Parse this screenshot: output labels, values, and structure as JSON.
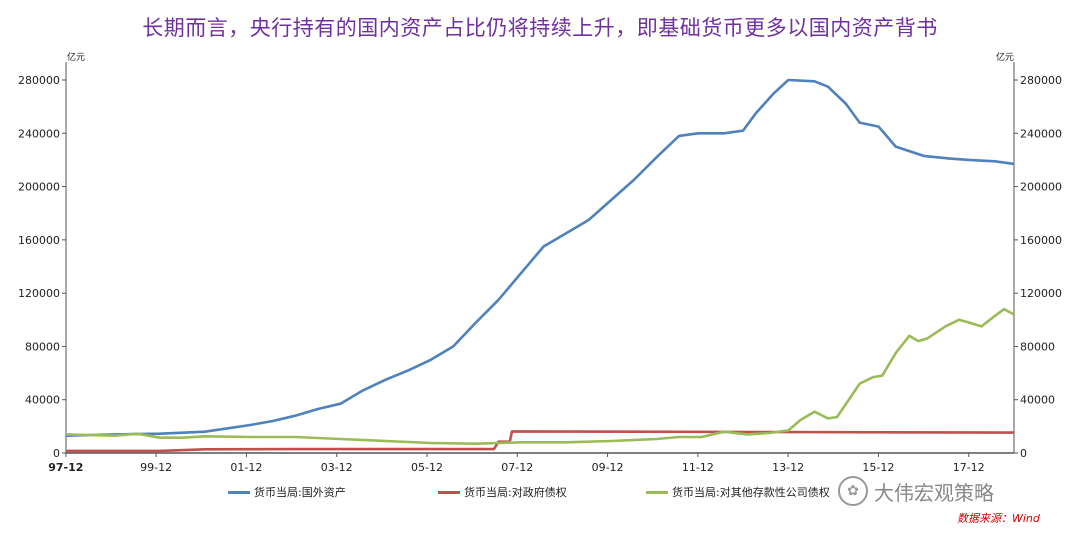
{
  "title": "长期而言，央行持有的国内资产占比仍将持续上升，即基础货币更多以国内资产背书",
  "source_label": "数据来源：Wind",
  "watermark": "大伟宏观策略",
  "chart_data": {
    "type": "line",
    "y_unit_left": "亿元",
    "y_unit_right": "亿元",
    "ylim": [
      0,
      280000
    ],
    "yticks": [
      "0",
      "40000",
      "80000",
      "120000",
      "160000",
      "200000",
      "240000",
      "280000"
    ],
    "xlim": [
      1997.92,
      2018.92
    ],
    "xticks": [
      "97-12",
      "99-12",
      "01-12",
      "03-12",
      "05-12",
      "07-12",
      "09-12",
      "11-12",
      "13-12",
      "15-12",
      "17-12"
    ],
    "grid": false,
    "legend_position": "bottom",
    "series": [
      {
        "name": "货币当局:国外资产",
        "color": "#4f81bd",
        "points": [
          [
            1997.92,
            13000
          ],
          [
            1999.0,
            14000
          ],
          [
            2000.0,
            14500
          ],
          [
            2001.0,
            16000
          ],
          [
            2002.0,
            21000
          ],
          [
            2002.5,
            24000
          ],
          [
            2003.0,
            28000
          ],
          [
            2003.5,
            33000
          ],
          [
            2004.0,
            37000
          ],
          [
            2004.5,
            47000
          ],
          [
            2005.0,
            55000
          ],
          [
            2005.5,
            62000
          ],
          [
            2006.0,
            70000
          ],
          [
            2006.5,
            80000
          ],
          [
            2007.0,
            98000
          ],
          [
            2007.5,
            115000
          ],
          [
            2008.0,
            135000
          ],
          [
            2008.5,
            155000
          ],
          [
            2009.0,
            165000
          ],
          [
            2009.5,
            175000
          ],
          [
            2010.0,
            190000
          ],
          [
            2010.5,
            205000
          ],
          [
            2011.0,
            222000
          ],
          [
            2011.5,
            238000
          ],
          [
            2011.92,
            240000
          ],
          [
            2012.5,
            240000
          ],
          [
            2012.92,
            242000
          ],
          [
            2013.2,
            255000
          ],
          [
            2013.6,
            270000
          ],
          [
            2013.92,
            280000
          ],
          [
            2014.5,
            279000
          ],
          [
            2014.8,
            275000
          ],
          [
            2015.2,
            262000
          ],
          [
            2015.5,
            248000
          ],
          [
            2015.92,
            245000
          ],
          [
            2016.3,
            230000
          ],
          [
            2016.92,
            223000
          ],
          [
            2017.5,
            221000
          ],
          [
            2017.92,
            220000
          ],
          [
            2018.5,
            219000
          ],
          [
            2018.92,
            217000
          ]
        ]
      },
      {
        "name": "货币当局:对政府债权",
        "color": "#c0504d",
        "points": [
          [
            1997.92,
            1600
          ],
          [
            2000.0,
            1600
          ],
          [
            2001.0,
            2800
          ],
          [
            2003.0,
            2900
          ],
          [
            2006.0,
            2900
          ],
          [
            2007.4,
            2900
          ],
          [
            2007.5,
            8500
          ],
          [
            2007.75,
            8500
          ],
          [
            2007.8,
            16200
          ],
          [
            2018.92,
            15300
          ]
        ]
      },
      {
        "name": "货币当局:对其他存款性公司债权",
        "color": "#9bbb59",
        "points": [
          [
            1997.92,
            14000
          ],
          [
            1999.0,
            13000
          ],
          [
            1999.5,
            14500
          ],
          [
            2000.0,
            11500
          ],
          [
            2000.5,
            11500
          ],
          [
            2001.0,
            12500
          ],
          [
            2002.0,
            12000
          ],
          [
            2003.0,
            12000
          ],
          [
            2004.0,
            10500
          ],
          [
            2005.0,
            9000
          ],
          [
            2006.0,
            7500
          ],
          [
            2007.0,
            7000
          ],
          [
            2008.0,
            8000
          ],
          [
            2009.0,
            8000
          ],
          [
            2010.0,
            9000
          ],
          [
            2011.0,
            10500
          ],
          [
            2011.5,
            12000
          ],
          [
            2012.0,
            12000
          ],
          [
            2012.5,
            16000
          ],
          [
            2013.0,
            14000
          ],
          [
            2013.5,
            15000
          ],
          [
            2013.92,
            17000
          ],
          [
            2014.2,
            25000
          ],
          [
            2014.5,
            31000
          ],
          [
            2014.8,
            26000
          ],
          [
            2015.0,
            27000
          ],
          [
            2015.3,
            42000
          ],
          [
            2015.5,
            52000
          ],
          [
            2015.8,
            57000
          ],
          [
            2016.0,
            58000
          ],
          [
            2016.3,
            75000
          ],
          [
            2016.6,
            88000
          ],
          [
            2016.8,
            84000
          ],
          [
            2017.0,
            86000
          ],
          [
            2017.4,
            95000
          ],
          [
            2017.7,
            100000
          ],
          [
            2017.92,
            98000
          ],
          [
            2018.2,
            95000
          ],
          [
            2018.5,
            103000
          ],
          [
            2018.7,
            108000
          ],
          [
            2018.92,
            104000
          ]
        ]
      }
    ]
  }
}
